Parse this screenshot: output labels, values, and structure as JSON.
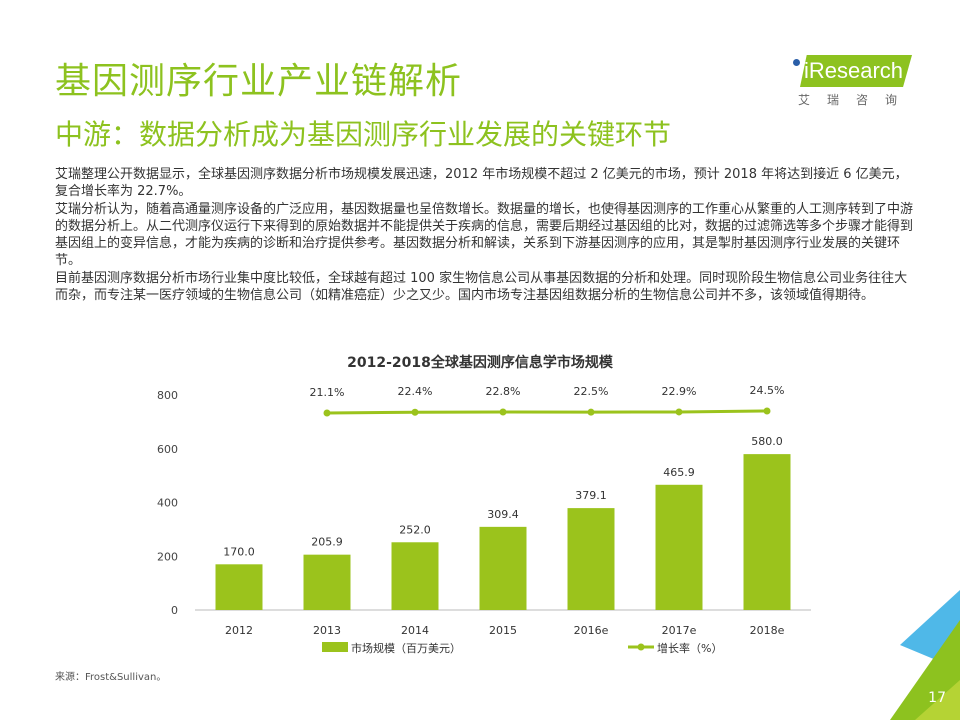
{
  "header": {
    "title": "基因测序行业产业链解析",
    "subtitle": "中游：数据分析成为基因测序行业发展的关键环节",
    "logo_text": "iResearch",
    "logo_cn": "艾瑞咨询"
  },
  "body": {
    "paragraphs": [
      "艾瑞整理公开数据显示，全球基因测序数据分析市场规模发展迅速，2012 年市场规模不超过 2 亿美元的市场，预计 2018 年将达到接近 6 亿美元，复合增长率为 22.7%。",
      "艾瑞分析认为，随着高通量测序设备的广泛应用，基因数据量也呈倍数增长。数据量的增长，也使得基因测序的工作重心从繁重的人工测序转到了中游的数据分析上。从二代测序仪运行下来得到的原始数据并不能提供关于疾病的信息，需要后期经过基因组的比对，数据的过滤筛选等多个步骤才能得到基因组上的变异信息，才能为疾病的诊断和治疗提供参考。基因数据分析和解读，关系到下游基因测序的应用，其是掣肘基因测序行业发展的关键环节。",
      "目前基因测序数据分析市场行业集中度比较低，全球越有超过 100 家生物信息公司从事基因数据的分析和处理。同时现阶段生物信息公司业务往往大而杂，而专注某一医疗领域的生物信息公司（如精准癌症）少之又少。国内市场专注基因组数据分析的生物信息公司并不多，该领域值得期待。"
    ]
  },
  "chart_data": {
    "type": "bar",
    "title": "2012-2018全球基因测序信息学市场规模",
    "categories": [
      "2012",
      "2013",
      "2014",
      "2015",
      "2016e",
      "2017e",
      "2018e"
    ],
    "series": [
      {
        "name": "市场规模（百万美元）",
        "type": "bar",
        "values": [
          170.0,
          205.9,
          252.0,
          309.4,
          379.1,
          465.9,
          580.0
        ],
        "color": "#9bc31c"
      },
      {
        "name": "增长率（%）",
        "type": "line",
        "values": [
          21.1,
          22.4,
          22.8,
          22.5,
          22.9,
          24.5
        ],
        "x": [
          "2013",
          "2014",
          "2015",
          "2016e",
          "2017e",
          "2018e"
        ],
        "color": "#9bc31c"
      }
    ],
    "yticks": [
      0,
      200,
      400,
      600,
      800
    ],
    "ylim": [
      0,
      800
    ],
    "grid": false,
    "legend": "bottom"
  },
  "footer": {
    "source": "来源：Frost&Sullivan。",
    "page": "17"
  },
  "colors": {
    "accent": "#8dc21f",
    "corner_blue": "#4fb8e8",
    "corner_green": "#8dc21f"
  }
}
